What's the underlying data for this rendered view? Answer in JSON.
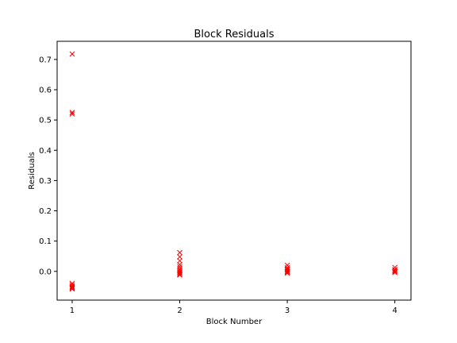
{
  "chart_data": {
    "type": "scatter",
    "title": "Block Residuals",
    "xlabel": "Block Number",
    "ylabel": "Residuals",
    "xlim": [
      0.86,
      4.15
    ],
    "ylim": [
      -0.095,
      0.76
    ],
    "xticks": [
      1,
      2,
      3,
      4
    ],
    "xtick_labels": [
      "1",
      "2",
      "3",
      "4"
    ],
    "yticks": [
      0.0,
      0.1,
      0.2,
      0.3,
      0.4,
      0.5,
      0.6,
      0.7
    ],
    "ytick_labels": [
      "0.0",
      "0.1",
      "0.2",
      "0.3",
      "0.4",
      "0.5",
      "0.6",
      "0.7"
    ],
    "grid": false,
    "marker": "x",
    "marker_color": "#ff0000",
    "series": [
      {
        "x": [
          1,
          1,
          1,
          1,
          1,
          1,
          1,
          1,
          1,
          2,
          2,
          2,
          2,
          2,
          2,
          2,
          2,
          2,
          2,
          2,
          3,
          3,
          3,
          3,
          3,
          3,
          3,
          4,
          4,
          4,
          4,
          4
        ],
        "y": [
          0.718,
          0.525,
          0.52,
          -0.04,
          -0.045,
          -0.05,
          -0.052,
          -0.055,
          -0.058,
          0.062,
          0.048,
          0.035,
          0.022,
          0.015,
          0.008,
          0.003,
          -0.002,
          -0.005,
          -0.009,
          -0.012,
          0.02,
          0.012,
          0.008,
          0.004,
          0.0,
          -0.003,
          -0.006,
          0.013,
          0.006,
          0.002,
          -0.001,
          -0.004
        ]
      }
    ]
  }
}
